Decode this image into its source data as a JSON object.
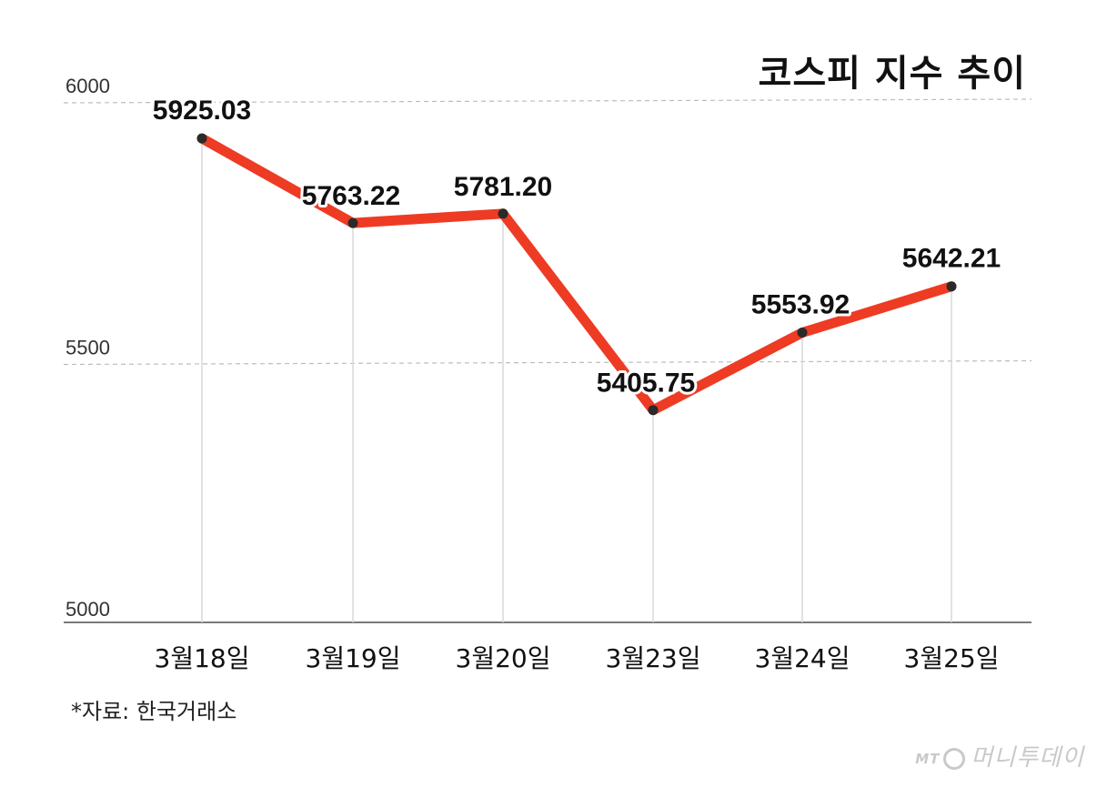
{
  "title": "코스피 지수 추이",
  "source": "*자료: 한국거래소",
  "watermark": "머니투데이",
  "watermark_mark": "MT",
  "colors": {
    "line": "#ee3b24",
    "marker": "#2a2a2a",
    "grid": "#bdbdbd",
    "axis": "#7a7a7a",
    "drop": "#d9d9d9"
  },
  "chart_data": {
    "type": "line",
    "categories": [
      "3월18일",
      "3월19일",
      "3월20일",
      "3월23일",
      "3월24일",
      "3월25일"
    ],
    "series": [
      {
        "values": [
          5925.03,
          5763.22,
          5781.2,
          5405.75,
          5553.92,
          5642.21
        ]
      }
    ],
    "data_labels": [
      "5925.03",
      "5763.22",
      "5781.20",
      "5405.75",
      "5553.92",
      "5642.21"
    ],
    "yticks": [
      5000,
      5500,
      6000
    ],
    "ylim": [
      5000,
      6000
    ],
    "grid": "dashed horizontal at 5500 and 6000"
  }
}
